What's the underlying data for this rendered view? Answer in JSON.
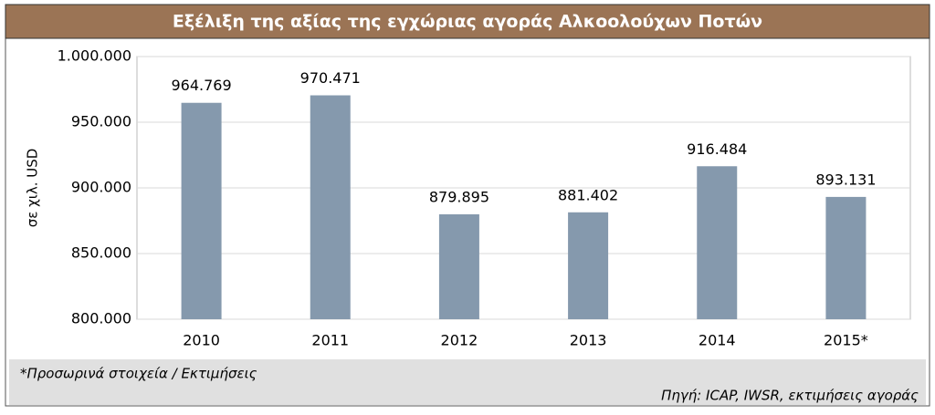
{
  "chart_data": {
    "type": "bar",
    "title": "Εξέλιξη της αξίας της εγχώριας αγοράς Αλκοολούχων Ποτών",
    "y_label": "σε χιλ. USD",
    "categories": [
      "2010",
      "2011",
      "2012",
      "2013",
      "2014",
      "2015*"
    ],
    "values": [
      964769,
      970471,
      879895,
      881402,
      916484,
      893131
    ],
    "value_labels": [
      "964.769",
      "970.471",
      "879.895",
      "881.402",
      "916.484",
      "893.131"
    ],
    "color": "#8599ad",
    "ylim": [
      800000,
      1000000
    ],
    "yticks": [
      {
        "value": 800000,
        "label": "800.000"
      },
      {
        "value": 850000,
        "label": "850.000"
      },
      {
        "value": 900000,
        "label": "900.000"
      },
      {
        "value": 950000,
        "label": "950.000"
      },
      {
        "value": 1000000,
        "label": "1.000.000"
      }
    ],
    "grid": true,
    "footnote": "*Προσωρινά στοιχεία / Εκτιμήσεις",
    "source": "Πηγή: ICAP, IWSR, εκτιμήσεις αγοράς"
  }
}
